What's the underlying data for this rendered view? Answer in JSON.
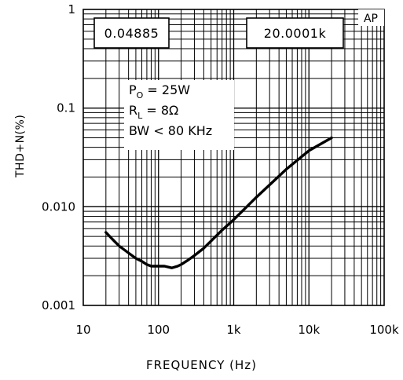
{
  "chart_data": {
    "type": "line",
    "title": "",
    "xlabel": "FREQUENCY (Hz)",
    "ylabel": "THD+N(%)",
    "x_scale": "log",
    "y_scale": "log",
    "xlim": [
      10,
      100000
    ],
    "ylim": [
      0.001,
      1
    ],
    "x_tick_labels": [
      "10",
      "100",
      "1k",
      "10k",
      "100k"
    ],
    "y_tick_labels": [
      "1",
      "0.1",
      "0.010",
      "0.001"
    ],
    "grid": true,
    "readout_left": "0.04885",
    "readout_right": "20.0001k",
    "brand": "AP",
    "conditions": [
      {
        "main": "P",
        "sub": "O",
        "rest": " = 25W"
      },
      {
        "main": "R",
        "sub": "L",
        "rest": " = 8Ω"
      },
      {
        "main": "BW < 80 KHz",
        "sub": "",
        "rest": ""
      }
    ],
    "series": [
      {
        "x": [
          20,
          25,
          30,
          40,
          50,
          60,
          70,
          80,
          90,
          100,
          120,
          150,
          180,
          200,
          250,
          300,
          400,
          500,
          700,
          1000,
          2000,
          5000,
          10000,
          20000
        ],
        "y": [
          0.0055,
          0.0046,
          0.004,
          0.0034,
          0.003,
          0.0028,
          0.0026,
          0.0025,
          0.0025,
          0.0025,
          0.0025,
          0.0024,
          0.0025,
          0.0026,
          0.0029,
          0.0032,
          0.0038,
          0.0045,
          0.0058,
          0.0074,
          0.0125,
          0.024,
          0.037,
          0.05
        ]
      }
    ]
  }
}
